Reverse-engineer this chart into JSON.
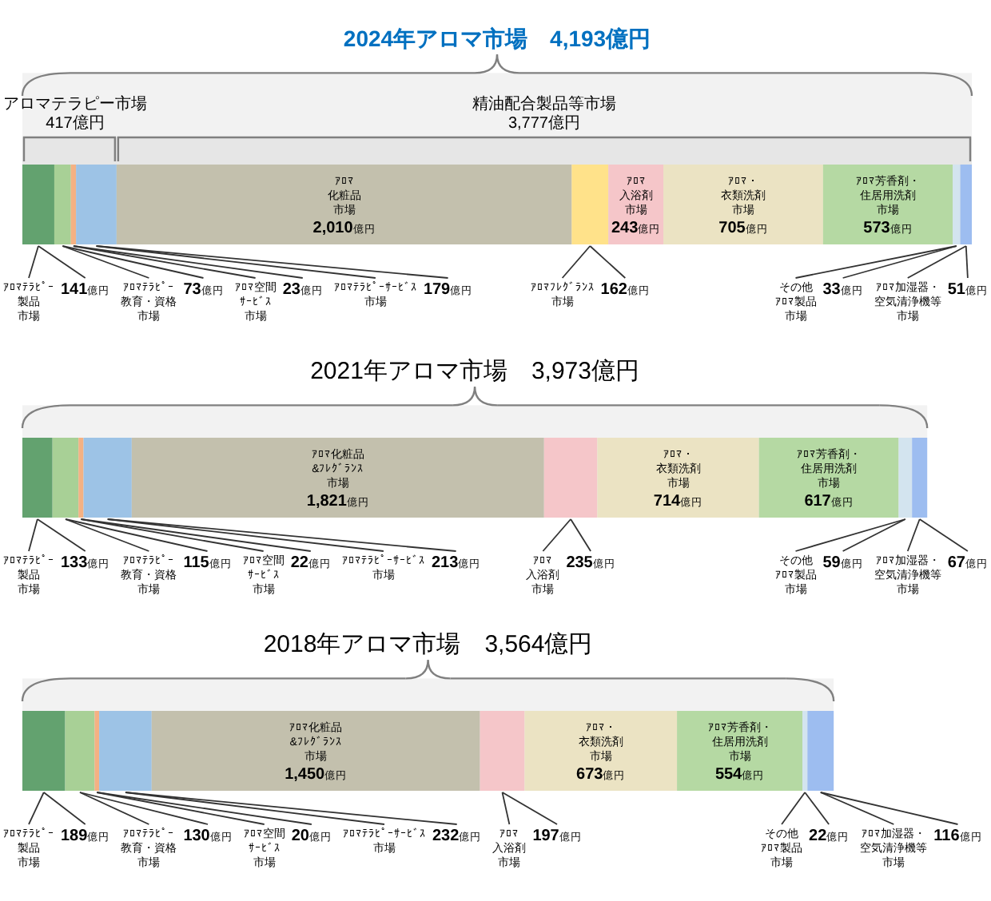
{
  "chart_data": [
    {
      "type": "bar",
      "orientation": "horizontal",
      "stacked": true,
      "title": "2024年アロマ市場　4,193億円",
      "categories": [
        null
      ],
      "series": [
        {
          "name": "ｱﾛﾏﾃﾗﾋﾟｰ製品市場",
          "color": "#63a26f",
          "values": [
            141
          ],
          "value_labels": [
            "141億円"
          ]
        },
        {
          "name": "ｱﾛﾏﾃﾗﾋﾟｰ教育・資格市場",
          "color": "#a8d096",
          "values": [
            73
          ],
          "value_labels": [
            "73億円"
          ]
        },
        {
          "name": "ｱﾛﾏ空間ｻｰﾋﾞｽ市場",
          "color": "#f4b183",
          "values": [
            23
          ],
          "value_labels": [
            "23億円"
          ]
        },
        {
          "name": "ｱﾛﾏﾃﾗﾋﾟｰｻｰﾋﾞｽ市場",
          "color": "#9dc3e6",
          "values": [
            179
          ],
          "value_labels": [
            "179億円"
          ]
        },
        {
          "name": "ｱﾛﾏ化粧品市場",
          "color": "#c3c0ad",
          "values": [
            2010
          ],
          "value_labels": [
            "2,010億円"
          ]
        },
        {
          "name": "ｱﾛﾏﾌﾚｸﾞﾗﾝｽ市場",
          "color": "#ffe28a",
          "values": [
            162
          ],
          "value_labels": [
            "162億円"
          ]
        },
        {
          "name": "ｱﾛﾏ入浴剤市場",
          "color": "#f5c6c9",
          "values": [
            243
          ],
          "value_labels": [
            "243億円"
          ]
        },
        {
          "name": "ｱﾛﾏ・衣類洗剤市場",
          "color": "#ebe3c3",
          "values": [
            705
          ],
          "value_labels": [
            "705億円"
          ]
        },
        {
          "name": "ｱﾛﾏ芳香剤・住居用洗剤市場",
          "color": "#b5d9a3",
          "values": [
            573
          ],
          "value_labels": [
            "573億円"
          ]
        },
        {
          "name": "その他ｱﾛﾏ製品市場",
          "color": "#d3e4ef",
          "values": [
            33
          ],
          "value_labels": [
            "33億円"
          ]
        },
        {
          "name": "ｱﾛﾏ加湿器・空気清浄機等市場",
          "color": "#9dbdf0",
          "values": [
            51
          ],
          "value_labels": [
            "51億円"
          ]
        }
      ],
      "bands": [
        {
          "axis": "x",
          "from": 0,
          "to": 4193
        },
        {
          "axis": "x",
          "from": 0,
          "to": 416,
          "label": "アロマテラピー市場\n417億円"
        },
        {
          "axis": "x",
          "from": 416,
          "to": 4193,
          "label": "精油配合製品等市場\n3,777億円"
        }
      ]
    },
    {
      "type": "bar",
      "orientation": "horizontal",
      "stacked": true,
      "title": "2021年アロマ市場　3,973億円",
      "categories": [
        null
      ],
      "series": [
        {
          "name": "ｱﾛﾏﾃﾗﾋﾟｰ製品市場",
          "color": "#63a26f",
          "values": [
            133
          ],
          "value_labels": [
            "133億円"
          ]
        },
        {
          "name": "ｱﾛﾏﾃﾗﾋﾟｰ教育・資格市場",
          "color": "#a8d096",
          "values": [
            115
          ],
          "value_labels": [
            "115億円"
          ]
        },
        {
          "name": "ｱﾛﾏ空間ｻｰﾋﾞｽ市場",
          "color": "#f4b183",
          "values": [
            22
          ],
          "value_labels": [
            "22億円"
          ]
        },
        {
          "name": "ｱﾛﾏﾃﾗﾋﾟｰｻｰﾋﾞｽ市場",
          "color": "#9dc3e6",
          "values": [
            213
          ],
          "value_labels": [
            "213億円"
          ]
        },
        {
          "name": "ｱﾛﾏ化粧品&ﾌﾚｸﾞﾗﾝｽ市場",
          "color": "#c3c0ad",
          "values": [
            1821
          ],
          "value_labels": [
            "1,821億円"
          ]
        },
        {
          "name": "ｱﾛﾏ入浴剤市場",
          "color": "#f5c6c9",
          "values": [
            235
          ],
          "value_labels": [
            "235億円"
          ]
        },
        {
          "name": "ｱﾛﾏ・衣類洗剤市場",
          "color": "#ebe3c3",
          "values": [
            714
          ],
          "value_labels": [
            "714億円"
          ]
        },
        {
          "name": "ｱﾛﾏ芳香剤・住居用洗剤市場",
          "color": "#b5d9a3",
          "values": [
            617
          ],
          "value_labels": [
            "617億円"
          ]
        },
        {
          "name": "その他ｱﾛﾏ製品市場",
          "color": "#d3e4ef",
          "values": [
            59
          ],
          "value_labels": [
            "59億円"
          ]
        },
        {
          "name": "ｱﾛﾏ加湿器・空気清浄機等市場",
          "color": "#9dbdf0",
          "values": [
            67
          ],
          "value_labels": [
            "67億円"
          ]
        }
      ],
      "bands": [
        {
          "axis": "x",
          "from": 0,
          "to": 3996
        }
      ]
    },
    {
      "type": "bar",
      "orientation": "horizontal",
      "stacked": true,
      "title": "2018年アロマ市場　3,564億円",
      "categories": [
        null
      ],
      "series": [
        {
          "name": "ｱﾛﾏﾃﾗﾋﾟｰ製品市場",
          "color": "#63a26f",
          "values": [
            189
          ],
          "value_labels": [
            "189億円"
          ]
        },
        {
          "name": "ｱﾛﾏﾃﾗﾋﾟｰ教育・資格市場",
          "color": "#a8d096",
          "values": [
            130
          ],
          "value_labels": [
            "130億円"
          ]
        },
        {
          "name": "ｱﾛﾏ空間ｻｰﾋﾞｽ市場",
          "color": "#f4b183",
          "values": [
            20
          ],
          "value_labels": [
            "20億円"
          ]
        },
        {
          "name": "ｱﾛﾏﾃﾗﾋﾟｰｻｰﾋﾞｽ市場",
          "color": "#9dc3e6",
          "values": [
            232
          ],
          "value_labels": [
            "232億円"
          ]
        },
        {
          "name": "ｱﾛﾏ化粧品&ﾌﾚｸﾞﾗﾝｽ市場",
          "color": "#c3c0ad",
          "values": [
            1450
          ],
          "value_labels": [
            "1,450億円"
          ]
        },
        {
          "name": "ｱﾛﾏ入浴剤市場",
          "color": "#f5c6c9",
          "values": [
            197
          ],
          "value_labels": [
            "197億円"
          ]
        },
        {
          "name": "ｱﾛﾏ・衣類洗剤市場",
          "color": "#ebe3c3",
          "values": [
            673
          ],
          "value_labels": [
            "673億円"
          ]
        },
        {
          "name": "ｱﾛﾏ芳香剤・住居用洗剤市場",
          "color": "#b5d9a3",
          "values": [
            554
          ],
          "value_labels": [
            "554億円"
          ]
        },
        {
          "name": "その他ｱﾛﾏ製品市場",
          "color": "#d3e4ef",
          "values": [
            22
          ],
          "value_labels": [
            "22億円"
          ]
        },
        {
          "name": "ｱﾛﾏ加湿器・空気清浄機等市場",
          "color": "#9dbdf0",
          "values": [
            116
          ],
          "value_labels": [
            "116億円"
          ]
        }
      ],
      "bands": [
        {
          "axis": "x",
          "from": 0,
          "to": 3583
        }
      ]
    }
  ]
}
